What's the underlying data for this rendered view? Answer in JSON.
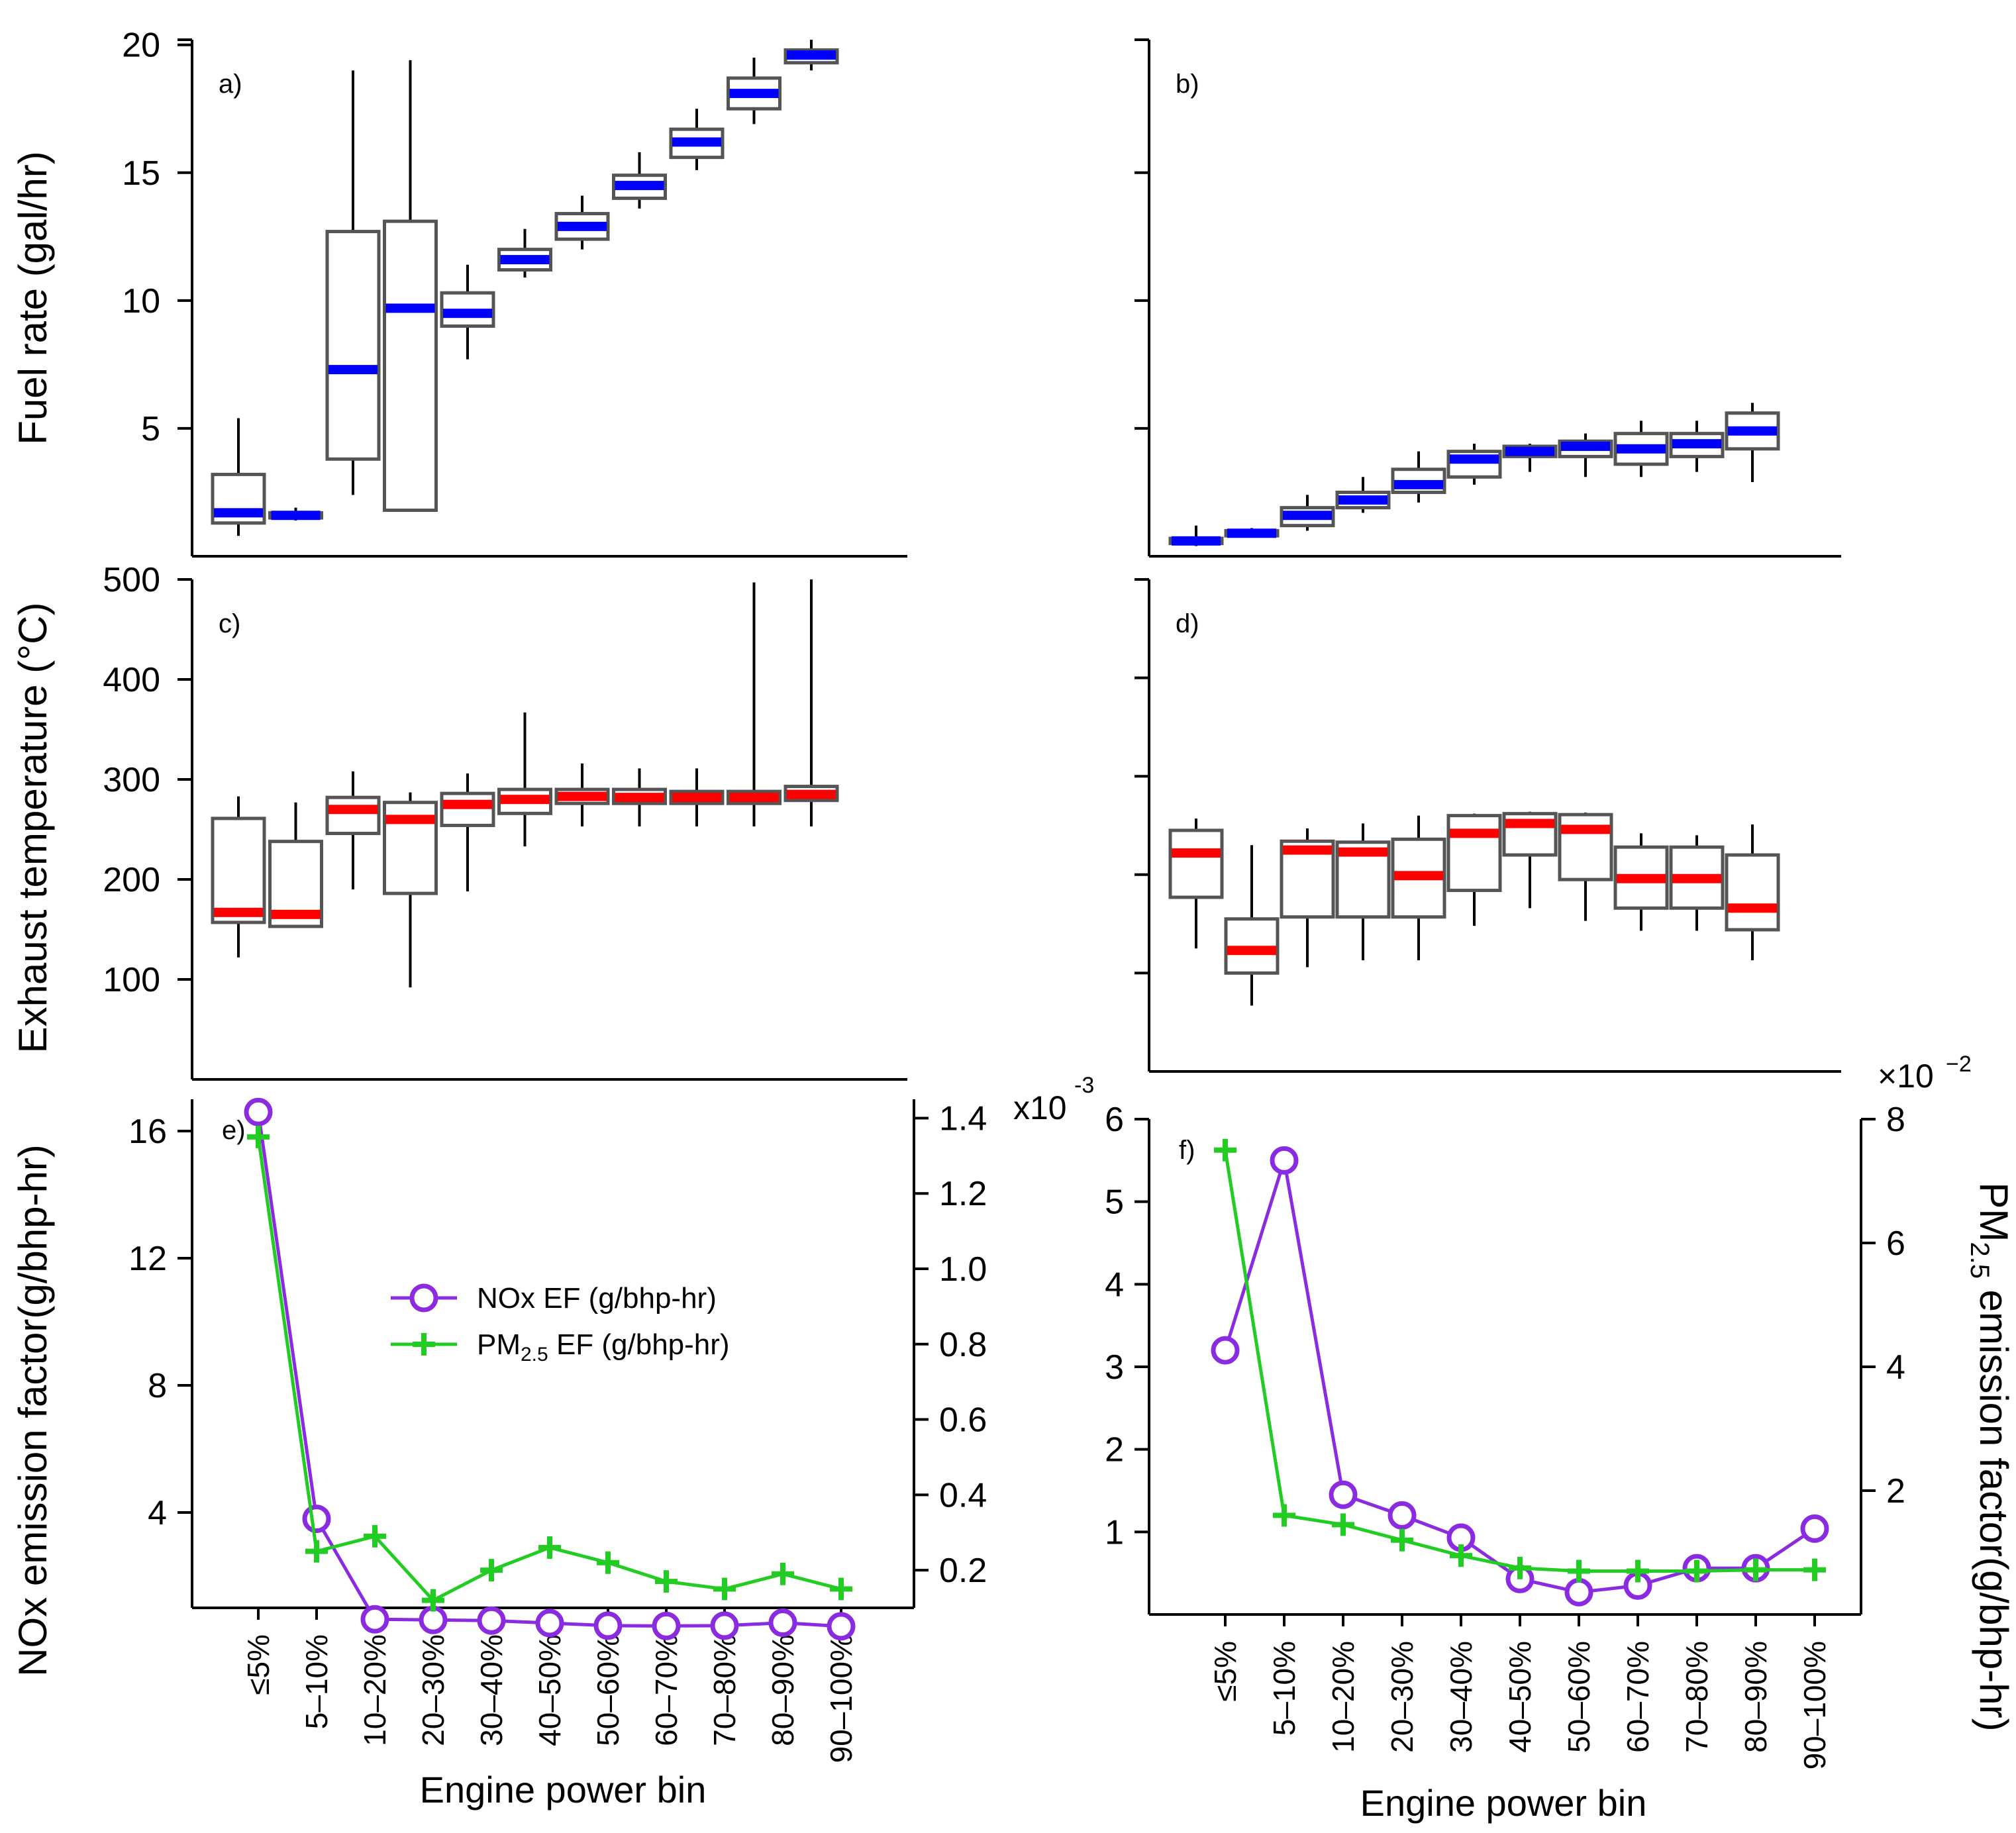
{
  "chart_data": [
    {
      "panel": "a)",
      "type": "box",
      "ylabel": "Fuel rate (gal/hr)",
      "yticks": [
        5,
        10,
        15,
        20
      ],
      "ylim": [
        0,
        20.2
      ],
      "median_color": "#0000ff",
      "boxes": [
        {
          "min": 0.8,
          "q1": 1.3,
          "median": 1.7,
          "q3": 3.2,
          "max": 5.4
        },
        {
          "min": 1.4,
          "q1": 1.5,
          "median": 1.6,
          "q3": 1.7,
          "max": 1.9
        },
        {
          "min": 2.4,
          "q1": 3.8,
          "median": 7.3,
          "q3": 12.7,
          "max": 19.0
        },
        {
          "min": 1.8,
          "q1": 1.8,
          "median": 9.7,
          "q3": 13.1,
          "max": 19.4
        },
        {
          "min": 7.7,
          "q1": 9.0,
          "median": 9.5,
          "q3": 10.3,
          "max": 11.4
        },
        {
          "min": 10.9,
          "q1": 11.2,
          "median": 11.6,
          "q3": 12.0,
          "max": 12.8
        },
        {
          "min": 12.0,
          "q1": 12.4,
          "median": 12.9,
          "q3": 13.4,
          "max": 14.1
        },
        {
          "min": 13.6,
          "q1": 14.0,
          "median": 14.5,
          "q3": 14.9,
          "max": 15.8
        },
        {
          "min": 15.1,
          "q1": 15.6,
          "median": 16.2,
          "q3": 16.7,
          "max": 17.5
        },
        {
          "min": 16.9,
          "q1": 17.5,
          "median": 18.1,
          "q3": 18.7,
          "max": 19.5
        },
        {
          "min": 19.0,
          "q1": 19.3,
          "median": 19.6,
          "q3": 19.8,
          "max": 20.2
        }
      ]
    },
    {
      "panel": "b)",
      "type": "box",
      "ylim": [
        0,
        20.2
      ],
      "median_color": "#0000ff",
      "boxes": [
        {
          "min": 0.4,
          "q1": 0.5,
          "median": 0.6,
          "q3": 0.7,
          "max": 1.2
        },
        {
          "min": 0.8,
          "q1": 0.8,
          "median": 0.9,
          "q3": 1.0,
          "max": 1.1
        },
        {
          "min": 1.0,
          "q1": 1.2,
          "median": 1.6,
          "q3": 1.9,
          "max": 2.4
        },
        {
          "min": 1.7,
          "q1": 1.9,
          "median": 2.2,
          "q3": 2.5,
          "max": 3.1
        },
        {
          "min": 2.1,
          "q1": 2.5,
          "median": 2.8,
          "q3": 3.4,
          "max": 4.1
        },
        {
          "min": 2.8,
          "q1": 3.1,
          "median": 3.8,
          "q3": 4.1,
          "max": 4.4
        },
        {
          "min": 3.3,
          "q1": 3.9,
          "median": 4.1,
          "q3": 4.3,
          "max": 4.4
        },
        {
          "min": 3.1,
          "q1": 3.9,
          "median": 4.3,
          "q3": 4.5,
          "max": 4.8
        },
        {
          "min": 3.1,
          "q1": 3.6,
          "median": 4.2,
          "q3": 4.8,
          "max": 5.3
        },
        {
          "min": 3.3,
          "q1": 3.9,
          "median": 4.4,
          "q3": 4.8,
          "max": 5.3
        },
        {
          "min": 2.9,
          "q1": 4.2,
          "median": 4.9,
          "q3": 5.6,
          "max": 6.0
        }
      ]
    },
    {
      "panel": "c)",
      "type": "box",
      "ylabel": "Exhaust temperature (°C)",
      "yticks": [
        100,
        200,
        300,
        400,
        500
      ],
      "ylim": [
        0,
        500
      ],
      "median_color": "#ff0000",
      "boxes": [
        {
          "min": 122,
          "q1": 157,
          "median": 167,
          "q3": 261,
          "max": 283
        },
        {
          "min": 152,
          "q1": 153,
          "median": 165,
          "q3": 238,
          "max": 277
        },
        {
          "min": 190,
          "q1": 246,
          "median": 270,
          "q3": 282,
          "max": 308
        },
        {
          "min": 92,
          "q1": 186,
          "median": 260,
          "q3": 277,
          "max": 287
        },
        {
          "min": 188,
          "q1": 254,
          "median": 275,
          "q3": 286,
          "max": 306
        },
        {
          "min": 233,
          "q1": 266,
          "median": 280,
          "q3": 290,
          "max": 367
        },
        {
          "min": 253,
          "q1": 276,
          "median": 283,
          "q3": 290,
          "max": 316
        },
        {
          "min": 253,
          "q1": 276,
          "median": 282,
          "q3": 290,
          "max": 311
        },
        {
          "min": 253,
          "q1": 276,
          "median": 282,
          "q3": 288,
          "max": 311
        },
        {
          "min": 253,
          "q1": 276,
          "median": 282,
          "q3": 288,
          "max": 497
        },
        {
          "min": 253,
          "q1": 279,
          "median": 285,
          "q3": 293,
          "max": 500
        }
      ]
    },
    {
      "panel": "d)",
      "type": "box",
      "ylim": [
        0,
        500
      ],
      "median_color": "#ff0000",
      "boxes": [
        {
          "min": 125,
          "q1": 177,
          "median": 222,
          "q3": 245,
          "max": 257
        },
        {
          "min": 67,
          "q1": 100,
          "median": 123,
          "q3": 155,
          "max": 230
        },
        {
          "min": 106,
          "q1": 157,
          "median": 225,
          "q3": 234,
          "max": 247
        },
        {
          "min": 113,
          "q1": 157,
          "median": 223,
          "q3": 233,
          "max": 252
        },
        {
          "min": 113,
          "q1": 157,
          "median": 199,
          "q3": 236,
          "max": 260
        },
        {
          "min": 148,
          "q1": 184,
          "median": 242,
          "q3": 260,
          "max": 262
        },
        {
          "min": 166,
          "q1": 220,
          "median": 252,
          "q3": 262,
          "max": 264
        },
        {
          "min": 153,
          "q1": 195,
          "median": 246,
          "q3": 261,
          "max": 263
        },
        {
          "min": 143,
          "q1": 166,
          "median": 196,
          "q3": 228,
          "max": 242
        },
        {
          "min": 143,
          "q1": 166,
          "median": 196,
          "q3": 228,
          "max": 240
        },
        {
          "min": 113,
          "q1": 144,
          "median": 166,
          "q3": 220,
          "max": 251
        }
      ]
    },
    {
      "panel": "e)",
      "type": "line",
      "ylabel": "NOx emission factor(g/bhp-hr)",
      "xlabel": "Engine power bin",
      "left_yticks": [
        "4",
        "8",
        "12",
        "16"
      ],
      "left_ylim": [
        1,
        17
      ],
      "right_yticks": [
        "0.2",
        "0.4",
        "0.6",
        "0.8",
        "1.0",
        "1.2",
        "1.4"
      ],
      "right_ylim": [
        0.1,
        1.45
      ],
      "right_multiplier": "x10",
      "right_multiplier_exp": "-3",
      "series": [
        {
          "name": "NOx EF (g/bhp-hr)",
          "axis": "left",
          "color": "#8a2be2",
          "marker": "circle",
          "values": [
            16.6,
            3.8,
            0.64,
            0.62,
            0.6,
            0.52,
            0.44,
            0.43,
            0.44,
            0.53,
            0.42
          ]
        },
        {
          "name": "PM",
          "name_sub": "2.5",
          "name_suffix": " EF (g/bhp-hr)",
          "axis": "right",
          "color": "#22cc22",
          "marker": "plus",
          "values": [
            1.35,
            0.25,
            0.29,
            0.12,
            0.2,
            0.26,
            0.22,
            0.17,
            0.15,
            0.19,
            0.15
          ]
        }
      ]
    },
    {
      "panel": "f)",
      "type": "line",
      "xlabel": "Engine power bin",
      "right_ylabel": "PM",
      "right_ylabel_sub": "2.5",
      "right_ylabel_suffix": " emission factor(g/bhp-hr)",
      "left_yticks": [
        "1",
        "2",
        "3",
        "4",
        "5",
        "6"
      ],
      "left_ylim": [
        0,
        6
      ],
      "right_yticks": [
        "2",
        "4",
        "6",
        "8"
      ],
      "right_ylim": [
        0,
        8
      ],
      "right_multiplier": "×10",
      "right_multiplier_exp": "−2",
      "series": [
        {
          "name": "NOx",
          "axis": "left",
          "color": "#8a2be2",
          "marker": "circle",
          "values": [
            3.2,
            5.5,
            1.45,
            1.2,
            0.93,
            0.43,
            0.27,
            0.35,
            0.56,
            0.56,
            1.04
          ]
        },
        {
          "name": "PM2.5",
          "axis": "right",
          "color": "#22cc22",
          "marker": "plus",
          "values": [
            7.5,
            1.6,
            1.45,
            1.2,
            0.95,
            0.75,
            0.7,
            0.7,
            0.7,
            0.72,
            0.72
          ]
        }
      ]
    }
  ],
  "categories": [
    "≤5%",
    "5–10%",
    "10–20%",
    "20–30%",
    "30–40%",
    "40–50%",
    "50–60%",
    "60–70%",
    "70–80%",
    "80–90%",
    "90–100%"
  ]
}
